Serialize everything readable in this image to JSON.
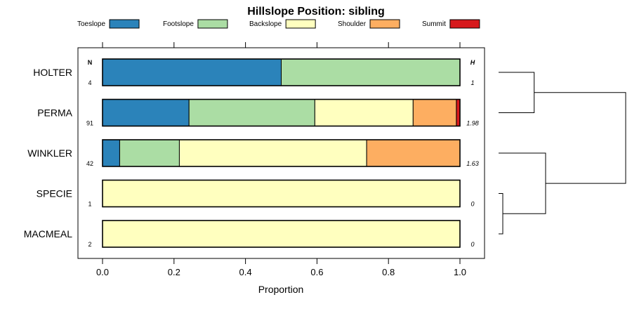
{
  "chart_data": {
    "type": "bar",
    "orientation": "horizontal",
    "stacked": true,
    "title": "Hillslope Position: sibling",
    "xlabel": "Proportion",
    "ylabel": "",
    "xlim": [
      0,
      1
    ],
    "x_ticks": [
      "0.0",
      "0.2",
      "0.4",
      "0.6",
      "0.8",
      "1.0"
    ],
    "n_header": "N",
    "h_header": "H",
    "legend": [
      {
        "name": "Toeslope",
        "color": "#2b83ba"
      },
      {
        "name": "Footslope",
        "color": "#abdda4"
      },
      {
        "name": "Backslope",
        "color": "#ffffbf"
      },
      {
        "name": "Shoulder",
        "color": "#fdae61"
      },
      {
        "name": "Summit",
        "color": "#d7191c"
      }
    ],
    "categories": [
      "HOLTER",
      "PERMA",
      "WINKLER",
      "SPECIE",
      "MACMEAL"
    ],
    "n": [
      "4",
      "91",
      "42",
      "1",
      "2"
    ],
    "h": [
      "1",
      "1.98",
      "1.63",
      "0",
      "0"
    ],
    "series": [
      {
        "name": "Toeslope",
        "values": [
          0.5,
          0.242,
          0.048,
          0,
          0
        ]
      },
      {
        "name": "Footslope",
        "values": [
          0.5,
          0.352,
          0.167,
          0,
          0
        ]
      },
      {
        "name": "Backslope",
        "values": [
          0,
          0.275,
          0.524,
          1.0,
          1.0
        ]
      },
      {
        "name": "Shoulder",
        "values": [
          0,
          0.121,
          0.261,
          0,
          0
        ]
      },
      {
        "name": "Summit",
        "values": [
          0,
          0.01,
          0,
          0,
          0
        ]
      }
    ],
    "dendrogram": {
      "merges": [
        {
          "a": "SPECIE",
          "b": "MACMEAL",
          "height": 0.0
        },
        {
          "a": "HOLTER",
          "b": "PERMA",
          "height": 0.28
        },
        {
          "a": "WINKLER",
          "b": "SPECIE+MACMEAL",
          "height": 0.37
        },
        {
          "a": "HOLTER+PERMA",
          "b": "WINKLER+SPECIE+MACMEAL",
          "height": 1.0
        }
      ]
    }
  }
}
